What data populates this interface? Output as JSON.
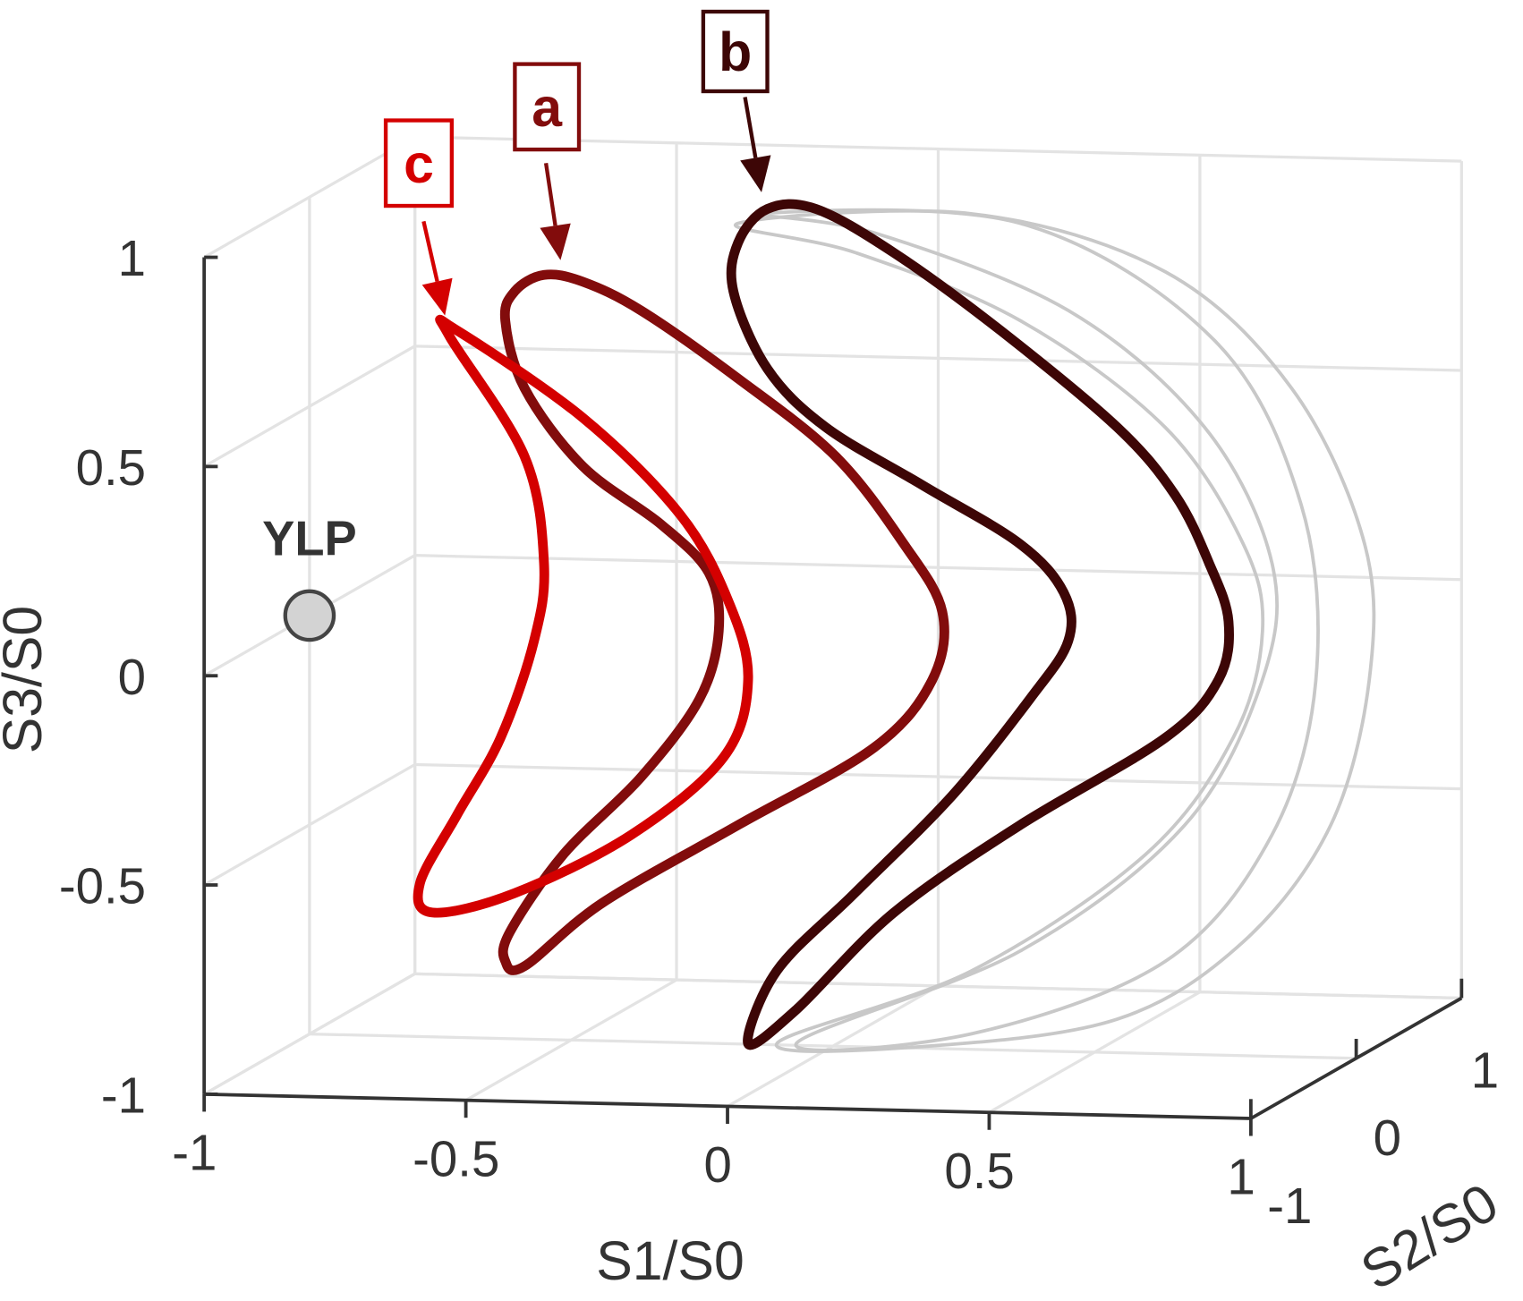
{
  "chart_data": {
    "type": "line3d",
    "xlabel": "S1/S0",
    "ylabel": "S2/S0",
    "zlabel": "S3/S0",
    "xlim": [
      -1,
      1
    ],
    "ylim": [
      -1,
      1
    ],
    "zlim": [
      -1,
      1
    ],
    "xticks": [
      -1,
      -0.5,
      0,
      0.5,
      1
    ],
    "yticks": [
      -1,
      0,
      1
    ],
    "zticks": [
      -1,
      -0.5,
      0,
      0.5,
      1
    ],
    "grid": true,
    "series": [
      {
        "color": "#c8c8c8",
        "y": 0,
        "x": [
          -0.181,
          0.264,
          0.635,
          0.877,
          1.016,
          1.025,
          0.951,
          0.784,
          0.543,
          0.172,
          -0.107,
          0.264,
          0.598,
          0.765,
          0.821,
          0.784,
          0.635,
          0.357,
          0.042
        ],
        "z": [
          0.961,
          0.997,
          0.869,
          0.597,
          0.23,
          -0.094,
          -0.445,
          -0.728,
          -0.92,
          -0.996,
          -0.997,
          -0.813,
          -0.524,
          -0.241,
          0.016,
          0.223,
          0.497,
          0.745,
          0.898
        ]
      },
      {
        "color": "#c8c8c8",
        "y": 0,
        "x": [
          -0.144,
          0.357,
          0.728,
          0.895,
          0.923,
          0.839,
          0.635,
          0.264,
          -0.07,
          0.357,
          0.672,
          0.821,
          0.839,
          0.71,
          0.45,
          0.079
        ],
        "z": [
          0.985,
          0.977,
          0.709,
          0.319,
          -0.097,
          -0.471,
          -0.779,
          -0.963,
          -0.996,
          -0.763,
          -0.453,
          -0.1,
          0.179,
          0.5,
          0.771,
          0.946
        ]
      },
      {
        "name": "b",
        "color": "#3d0606",
        "y": 0,
        "x": [
          -0.125,
          -0.181,
          -0.19,
          -0.125,
          -0.014,
          0.172,
          0.357,
          0.441,
          0.45,
          0.376,
          0.227,
          0.042,
          -0.107,
          -0.162,
          -0.07,
          0.116,
          0.357,
          0.635,
          0.737,
          0.756,
          0.719,
          0.654,
          0.543,
          0.32,
          0.116,
          -0.033
        ],
        "z": [
          0.997,
          0.915,
          0.798,
          0.615,
          0.479,
          0.345,
          0.211,
          0.097,
          -0.018,
          -0.16,
          -0.396,
          -0.633,
          -0.823,
          -0.999,
          -0.915,
          -0.678,
          -0.462,
          -0.245,
          -0.103,
          0.037,
          0.175,
          0.336,
          0.495,
          0.72,
          0.9,
          1.0
        ]
      },
      {
        "name": "a",
        "color": "#820c0c",
        "y": 0,
        "x": [
          -0.552,
          -0.608,
          -0.626,
          -0.589,
          -0.478,
          -0.329,
          -0.237,
          -0.218,
          -0.255,
          -0.366,
          -0.515,
          -0.617,
          -0.626,
          -0.589,
          -0.441,
          -0.181,
          0.079,
          0.19,
          0.209,
          0.135,
          0.005,
          -0.181,
          -0.366,
          -0.478
        ],
        "z": [
          0.827,
          0.786,
          0.716,
          0.555,
          0.372,
          0.238,
          0.124,
          -0.014,
          -0.178,
          -0.367,
          -0.557,
          -0.745,
          -0.815,
          -0.826,
          -0.671,
          -0.477,
          -0.284,
          -0.119,
          0.044,
          0.205,
          0.41,
          0.59,
          0.747,
          0.813
        ]
      },
      {
        "name": "c",
        "color": "#d40000",
        "y": 0,
        "x": [
          -0.734,
          -0.589,
          -0.552,
          -0.571,
          -0.635,
          -0.719,
          -0.789,
          -0.765,
          -0.608,
          -0.385,
          -0.209,
          -0.162,
          -0.199,
          -0.292,
          -0.478,
          -0.719
        ],
        "z": [
          0.678,
          0.392,
          0.138,
          -0.048,
          -0.282,
          -0.47,
          -0.634,
          -0.703,
          -0.652,
          -0.506,
          -0.316,
          -0.129,
          0.056,
          0.262,
          0.488,
          0.69
        ]
      }
    ],
    "points": [
      {
        "label": "YLP",
        "x": -1,
        "y": 0,
        "z": 0,
        "color": "#d3d3d3"
      }
    ]
  }
}
